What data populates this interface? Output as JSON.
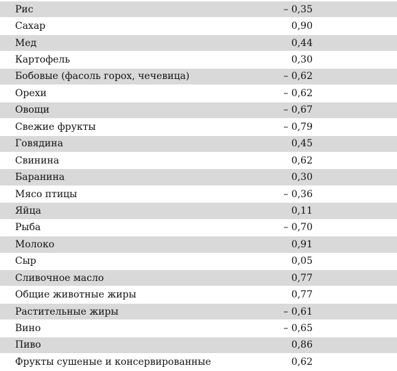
{
  "rows": [
    {
      "name": "Рис",
      "value": "– 0,35"
    },
    {
      "name": "Сахар",
      "value": "0,90"
    },
    {
      "name": "Мед",
      "value": "0,44"
    },
    {
      "name": "Картофель",
      "value": "0,30"
    },
    {
      "name": "Бобовые (фасоль горох, чечевица)",
      "value": "– 0,62"
    },
    {
      "name": "Орехи",
      "value": "– 0,62"
    },
    {
      "name": "Овощи",
      "value": "– 0,67"
    },
    {
      "name": "Свежие фрукты",
      "value": "– 0,79"
    },
    {
      "name": "Говядина",
      "value": "0,45"
    },
    {
      "name": "Свинина",
      "value": "0,62"
    },
    {
      "name": "Баранина",
      "value": "0,30"
    },
    {
      "name": "Мясо птицы",
      "value": "– 0,36"
    },
    {
      "name": "Яйца",
      "value": "0,11"
    },
    {
      "name": "Рыба",
      "value": "– 0,70"
    },
    {
      "name": "Молоко",
      "value": "0,91"
    },
    {
      "name": "Сыр",
      "value": "0,05"
    },
    {
      "name": "Сливочное масло",
      "value": "0,77"
    },
    {
      "name": "Общие животные жиры",
      "value": "0,77"
    },
    {
      "name": "Растительные жиры",
      "value": "– 0,61"
    },
    {
      "name": "Вино",
      "value": "– 0,65"
    },
    {
      "name": "Пиво",
      "value": "0,86"
    },
    {
      "name": "Фрукты сушеные и консервированные",
      "value": "0,62"
    }
  ]
}
